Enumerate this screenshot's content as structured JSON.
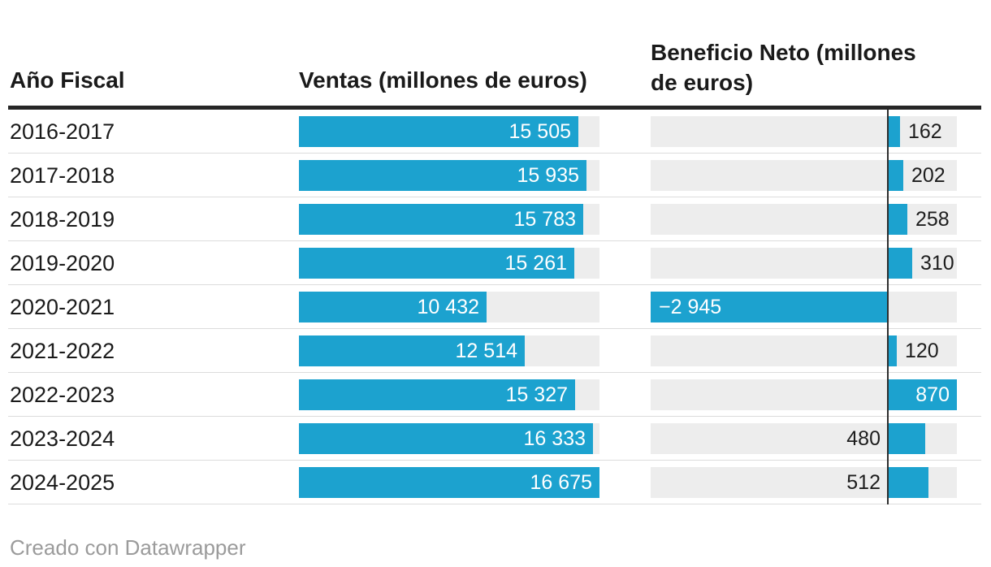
{
  "columns": {
    "year": "Año Fiscal",
    "ventas": "Ventas (millones de euros)",
    "beneficio": "Beneficio Neto (millones de euros)"
  },
  "chart_data": {
    "type": "bar",
    "categories": [
      "2016-2017",
      "2017-2018",
      "2018-2019",
      "2019-2020",
      "2020-2021",
      "2021-2022",
      "2022-2023",
      "2023-2024",
      "2024-2025"
    ],
    "series": [
      {
        "name": "Ventas (millones de euros)",
        "values": [
          15505,
          15935,
          15783,
          15261,
          10432,
          12514,
          15327,
          16333,
          16675
        ],
        "labels": [
          "15 505",
          "15 935",
          "15 783",
          "15 261",
          "10 432",
          "12 514",
          "15 327",
          "16 333",
          "16 675"
        ],
        "axis_min": 0,
        "axis_max": 16675,
        "label_placements": [
          "inside-right",
          "inside-right",
          "inside-right",
          "inside-right",
          "inside-right",
          "inside-right",
          "inside-right",
          "inside-right",
          "inside-right"
        ]
      },
      {
        "name": "Beneficio Neto (millones de euros)",
        "values": [
          162,
          202,
          258,
          310,
          -2945,
          120,
          870,
          480,
          512
        ],
        "labels": [
          "162",
          "202",
          "258",
          "310",
          "−2 945",
          "120",
          "870",
          "480",
          "512"
        ],
        "axis_min": -2945,
        "axis_max": 870,
        "label_placements": [
          "outside-right",
          "outside-right",
          "outside-right",
          "outside-right",
          "inside-left",
          "outside-right",
          "inside-right",
          "outside-left",
          "outside-left"
        ]
      }
    ],
    "title": "",
    "xlabel": "",
    "ylabel": "",
    "legend": false,
    "grid": false,
    "zero_line": true
  },
  "colors": {
    "bar": "#1ca2cf",
    "track": "#ededed",
    "header_rule": "#262626",
    "row_divider": "#dcdcdc",
    "zero_line": "#2e2e2e",
    "text": "#1a1a1a",
    "label_inside": "#ffffff",
    "label_outside": "#1d1d1d",
    "credit": "#9b9b9b"
  },
  "footer": {
    "credit": "Creado con Datawrapper"
  }
}
